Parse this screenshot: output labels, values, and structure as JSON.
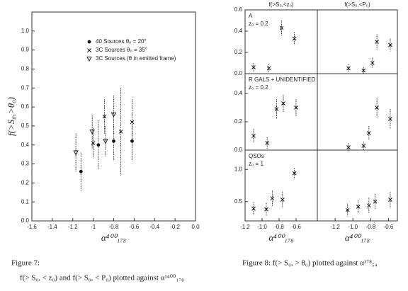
{
  "chart_data": [
    {
      "type": "scatter",
      "ylabel": "f(>S₀,>θ₀)",
      "xlabel": "α⁴⁰⁰₁₇₈",
      "xlim": [
        -1.6,
        0.0
      ],
      "xticks": [
        -1.6,
        -1.4,
        -1.2,
        -1.0,
        -0.8,
        -0.6,
        -0.4,
        -0.2,
        {
          "value": 0,
          "label": "0.0"
        }
      ],
      "ylim": [
        0,
        1.1
      ],
      "yticks": [
        {
          "value": 0,
          "label": "0.0"
        },
        0.1,
        0.2,
        0.3,
        0.4,
        0.5,
        0.6,
        0.7,
        0.8,
        0.9,
        {
          "value": 1,
          "label": "1.0"
        }
      ],
      "legend": "top-right",
      "series": [
        {
          "name": "40 Sources θ₀ = 20°",
          "marker": "dot",
          "color": "#111",
          "x": [
            -1.12,
            -0.95,
            -0.8,
            -0.62
          ],
          "values": [
            0.26,
            0.4,
            0.42,
            0.42
          ],
          "errors": [
            0.1,
            0.13,
            0.1,
            0.1
          ]
        },
        {
          "name": "3C Sources θ₀ = 35°",
          "marker": "x",
          "color": "#111",
          "x": [
            -1.0,
            -0.89,
            -0.73,
            -0.62
          ],
          "values": [
            0.41,
            0.55,
            0.47,
            0.52
          ],
          "errors": [
            0.08,
            0.09,
            0.23,
            0.12
          ]
        },
        {
          "name": "3C Sources (θ in emitted frame)",
          "marker": "triangle",
          "color": "#111",
          "x": [
            -1.17,
            -1.01,
            -0.88,
            -0.8
          ],
          "values": [
            0.36,
            0.47,
            0.42,
            0.56
          ],
          "errors": [
            0.1,
            0.09,
            0.08,
            0.1
          ]
        }
      ]
    },
    {
      "type": "scatter",
      "title": "f(>S₀,<z₀)",
      "annotations": [
        "A",
        "z₀ = 0.2"
      ],
      "xlim": [
        -1.2,
        -0.35
      ],
      "ylim": [
        0,
        0.6
      ],
      "yticks": [
        {
          "value": 0,
          "label": "0.0"
        },
        0.2,
        0.4,
        0.6
      ],
      "series": [
        {
          "marker": "x",
          "color": "#111",
          "x": [
            -1.1,
            -0.92,
            -0.77,
            -0.62
          ],
          "values": [
            0.06,
            0.05,
            0.43,
            0.33
          ],
          "errors": [
            0.04,
            0.04,
            0.07,
            0.06
          ]
        }
      ]
    },
    {
      "type": "scatter",
      "title": "f(>S₀,<P₀)",
      "xlim": [
        -1.4,
        -0.5
      ],
      "ylim": [
        0,
        0.6
      ],
      "series": [
        {
          "marker": "x",
          "color": "#111",
          "x": [
            -1.05,
            -0.88,
            -0.78,
            -0.73,
            -0.58
          ],
          "values": [
            0.05,
            0.03,
            0.1,
            0.3,
            0.27
          ],
          "errors": [
            0.04,
            0.03,
            0.05,
            0.07,
            0.06
          ]
        }
      ]
    },
    {
      "type": "scatter",
      "annotations": [
        "R GALS + UNIDENTIFIED",
        "z₀ = 0.2"
      ],
      "xlim": [
        -1.2,
        -0.35
      ],
      "ylim": [
        0,
        0.54
      ],
      "yticks": [
        {
          "value": 0,
          "label": "0.0"
        },
        0.2,
        0.4
      ],
      "series": [
        {
          "marker": "x",
          "color": "#111",
          "x": [
            -1.1,
            -0.94,
            -0.83,
            -0.75,
            -0.6
          ],
          "values": [
            0.1,
            0.05,
            0.29,
            0.33,
            0.3
          ],
          "errors": [
            0.05,
            0.04,
            0.07,
            0.06,
            0.06
          ]
        }
      ]
    },
    {
      "type": "scatter",
      "xlim": [
        -1.4,
        -0.5
      ],
      "ylim": [
        0,
        0.54
      ],
      "series": [
        {
          "marker": "x",
          "color": "#111",
          "x": [
            -1.05,
            -0.88,
            -0.82,
            -0.73,
            -0.58
          ],
          "values": [
            0.02,
            0.03,
            0.12,
            0.3,
            0.22
          ],
          "errors": [
            0.03,
            0.03,
            0.05,
            0.07,
            0.07
          ]
        }
      ]
    },
    {
      "type": "scatter",
      "annotations": [
        "QSOs",
        "z₀ = 1"
      ],
      "xlabel": "α⁴⁰⁰₁₇₈",
      "xlim": [
        -1.2,
        -0.35
      ],
      "ylim": [
        0.2,
        1.3
      ],
      "xticks": [
        -1.2,
        {
          "value": -1,
          "label": "-1.0"
        },
        -0.8,
        -0.6
      ],
      "yticks": [
        0.5,
        {
          "value": 1,
          "label": "1.0"
        }
      ],
      "series": [
        {
          "marker": "x",
          "color": "#111",
          "x": [
            -1.1,
            -0.95,
            -0.88,
            -0.76,
            -0.62
          ],
          "values": [
            0.39,
            0.38,
            0.55,
            0.53,
            0.94
          ],
          "errors": [
            0.1,
            0.1,
            0.12,
            0.12,
            0.08
          ]
        }
      ]
    },
    {
      "type": "scatter",
      "xlabel": "α⁴⁰⁰₁₇₈",
      "xlim": [
        -1.4,
        -0.5
      ],
      "ylim": [
        0.2,
        1.3
      ],
      "xticks": [
        -1.2,
        {
          "value": -1,
          "label": "-1.0"
        },
        -0.8,
        -0.6
      ],
      "series": [
        {
          "marker": "x",
          "color": "#111",
          "x": [
            -1.06,
            -0.94,
            -0.82,
            -0.75,
            -0.58
          ],
          "values": [
            0.37,
            0.42,
            0.44,
            0.5,
            0.53
          ],
          "errors": [
            0.1,
            0.1,
            0.12,
            0.12,
            0.12
          ]
        }
      ]
    }
  ],
  "captions": {
    "figure7_label": "Figure 7:",
    "figure7_text": "f(> S₀, < z₀) and f(> S₀, < P₀) plotted against α¹⁴⁰⁰₁₇₈",
    "figure8": "Figure 8: f(> S₀, > θ₀) plotted against α¹⁷⁸₅₄"
  }
}
